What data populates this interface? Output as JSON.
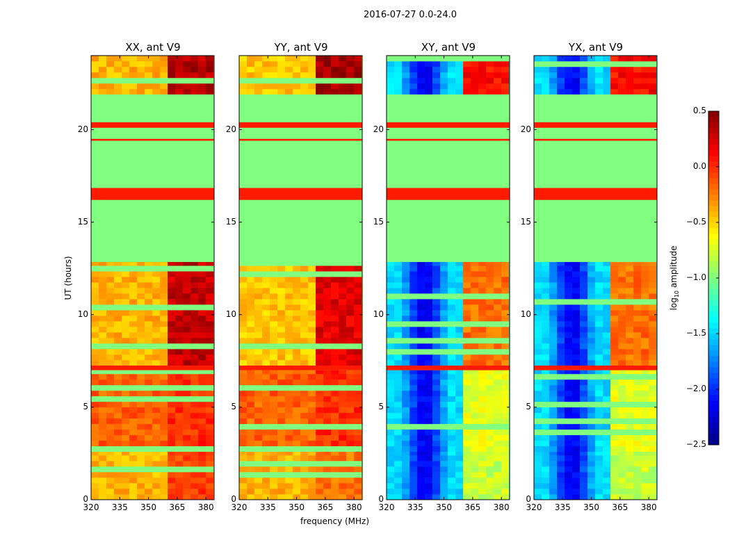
{
  "chart_data": {
    "type": "heatmap",
    "title": "2016-07-27 0.0-24.0",
    "xlabel": "frequency (MHz)",
    "ylabel": "UT (hours)",
    "xlim": [
      320,
      384.3
    ],
    "ylim": [
      0,
      24
    ],
    "xticks": [
      "320",
      "335",
      "350",
      "365",
      "380"
    ],
    "yticks": [
      "0",
      "5",
      "10",
      "15",
      "20"
    ],
    "xtick_values": [
      320,
      335,
      350,
      365,
      380
    ],
    "ytick_values": [
      0,
      5,
      10,
      15,
      20
    ],
    "colorbar": {
      "label": "log10 amplitude",
      "label_main": "log",
      "label_sub": "10",
      "label_rest": " amplitude",
      "colormap": "jet",
      "range": [
        -2.5,
        0.5
      ],
      "ticks": [
        "0.5",
        "0.0",
        "−0.5",
        "−1.0",
        "−1.5",
        "−2.0",
        "−2.5"
      ],
      "tick_values": [
        0.5,
        0.0,
        -0.5,
        -1.0,
        -1.5,
        -2.0,
        -2.5
      ]
    },
    "high_freq_band_mhz": [
      362,
      382
    ],
    "flag_bands": [
      {
        "t": [
          12.85,
          16.2
        ],
        "value": -1.0
      },
      {
        "t": [
          16.2,
          16.85
        ],
        "value": 0.05
      },
      {
        "t": [
          16.85,
          20.1
        ],
        "value": -1.0
      },
      {
        "t": [
          19.4,
          19.5
        ],
        "value": 0.05
      },
      {
        "t": [
          20.1,
          20.4
        ],
        "value": 0.05
      },
      {
        "t": [
          20.4,
          21.9
        ],
        "value": -1.0
      },
      {
        "t": [
          7.0,
          7.25
        ],
        "value": 0.05
      }
    ],
    "panels": [
      {
        "title": "XX, ant V9",
        "cross": false,
        "bands": [
          [
            0,
            2.6,
            -0.4,
            -0.05
          ],
          [
            2.6,
            7.0,
            -0.15,
            0.0
          ],
          [
            7.25,
            12.85,
            -0.4,
            0.3
          ],
          [
            21.9,
            24,
            -0.4,
            0.35
          ]
        ]
      },
      {
        "title": "YY, ant V9",
        "cross": false,
        "bands": [
          [
            0,
            2.6,
            -0.4,
            -0.2
          ],
          [
            2.6,
            7.0,
            -0.15,
            0.0
          ],
          [
            7.25,
            12.85,
            -0.45,
            0.2
          ],
          [
            21.9,
            24,
            -0.45,
            0.4
          ]
        ]
      },
      {
        "title": "XY, ant V9",
        "cross": true,
        "bands": [
          [
            0,
            2.6,
            -1.8,
            -0.8
          ],
          [
            2.6,
            7.0,
            -1.8,
            -0.7
          ],
          [
            7.25,
            12.85,
            -1.8,
            -0.2
          ],
          [
            21.9,
            24,
            -1.8,
            0.1
          ]
        ]
      },
      {
        "title": "YX, ant V9",
        "cross": true,
        "bands": [
          [
            0,
            2.6,
            -1.8,
            -0.8
          ],
          [
            2.6,
            7.0,
            -1.8,
            -0.7
          ],
          [
            7.25,
            12.85,
            -1.8,
            -0.2
          ],
          [
            21.9,
            24,
            -1.8,
            0.1
          ]
        ]
      }
    ]
  }
}
